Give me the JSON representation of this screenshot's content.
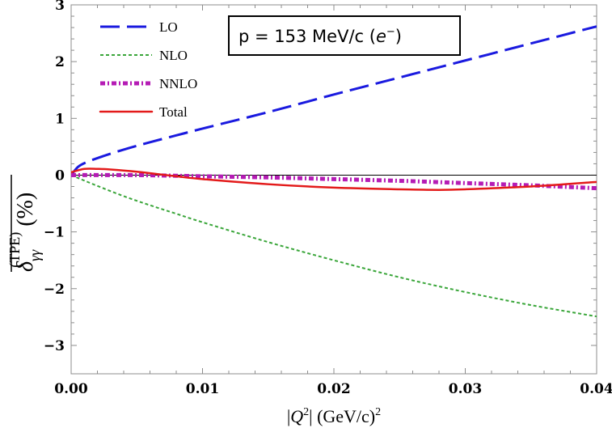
{
  "chart_data": {
    "type": "line",
    "annotation": {
      "prefix": "p = 153 MeV/c (",
      "particle": "e",
      "superscript": "−",
      "suffix": ")"
    },
    "xlabel": {
      "bar_open": "|",
      "var": "Q",
      "var_sup": "2",
      "bar_close": "|",
      "units": " (GeV/c)",
      "units_sup": "2"
    },
    "ylabel": {
      "symbol": "δ",
      "subscript": "γγ",
      "superscript": "(TPE)",
      "units": " (%)"
    },
    "xlim": [
      0.0,
      0.04
    ],
    "ylim": [
      -3.5,
      3.0
    ],
    "x_ticks": [
      0.0,
      0.01,
      0.02,
      0.03,
      0.04
    ],
    "x_tick_labels": [
      "0.00",
      "0.01",
      "0.02",
      "0.03",
      "0.04"
    ],
    "y_ticks": [
      3,
      2,
      1,
      0,
      -1,
      -2,
      -3
    ],
    "y_tick_labels": [
      "3",
      "2",
      "1",
      "0",
      "−1",
      "−2",
      "−3"
    ],
    "grid": false,
    "zero_line": true,
    "legend_position": "top-left",
    "series": [
      {
        "name": "LO",
        "color": "#1a1adf",
        "style": "dashed",
        "x": [
          0.0,
          0.0005,
          0.001,
          0.002,
          0.004,
          0.006,
          0.008,
          0.01,
          0.015,
          0.02,
          0.025,
          0.03,
          0.035,
          0.04
        ],
        "y": [
          0.0,
          0.14,
          0.21,
          0.3,
          0.45,
          0.58,
          0.7,
          0.82,
          1.11,
          1.42,
          1.72,
          2.02,
          2.32,
          2.62
        ]
      },
      {
        "name": "NLO",
        "color": "#3aa63a",
        "style": "dotted",
        "x": [
          0.0,
          0.002,
          0.004,
          0.006,
          0.008,
          0.01,
          0.015,
          0.02,
          0.025,
          0.03,
          0.035,
          0.04
        ],
        "y": [
          0.0,
          -0.19,
          -0.37,
          -0.53,
          -0.68,
          -0.83,
          -1.18,
          -1.5,
          -1.8,
          -2.06,
          -2.29,
          -2.49
        ]
      },
      {
        "name": "NNLO",
        "color": "#b51cb5",
        "style": "dashdot",
        "x": [
          0.0,
          0.005,
          0.01,
          0.015,
          0.02,
          0.025,
          0.03,
          0.035,
          0.04
        ],
        "y": [
          0.0,
          0.0,
          -0.02,
          -0.04,
          -0.07,
          -0.1,
          -0.14,
          -0.18,
          -0.23
        ]
      },
      {
        "name": "Total",
        "color": "#e31a1a",
        "style": "solid",
        "x": [
          0.0,
          0.001,
          0.002,
          0.003,
          0.005,
          0.008,
          0.01,
          0.015,
          0.02,
          0.025,
          0.028,
          0.03,
          0.035,
          0.04
        ],
        "y": [
          0.05,
          0.11,
          0.11,
          0.1,
          0.06,
          -0.02,
          -0.07,
          -0.16,
          -0.22,
          -0.25,
          -0.26,
          -0.25,
          -0.2,
          -0.12
        ]
      }
    ]
  }
}
